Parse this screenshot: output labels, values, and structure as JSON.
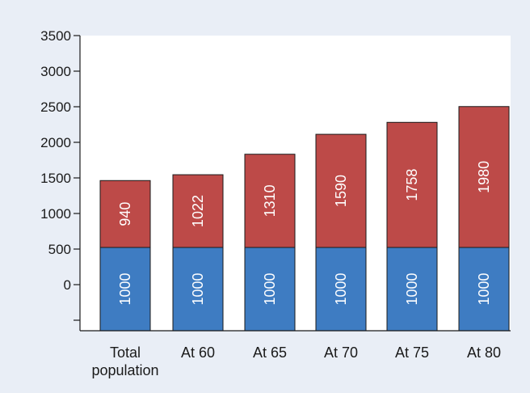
{
  "chart_data": {
    "type": "bar",
    "stacked": true,
    "categories": [
      [
        "Total",
        "population"
      ],
      [
        "At 60"
      ],
      [
        "At 65"
      ],
      [
        "At 70"
      ],
      [
        "At 75"
      ],
      [
        "At 80"
      ]
    ],
    "series": [
      {
        "values": [
          1000,
          1000,
          1000,
          1000,
          1000,
          1000
        ],
        "color": "#3e7cc2"
      },
      {
        "values": [
          940,
          1022,
          1310,
          1590,
          1758,
          1980
        ],
        "color": "#bd4a48"
      }
    ],
    "y_ticks": [
      "3500",
      "3000",
      "2500",
      "2000",
      "1500",
      "1000",
      "500",
      "0",
      ""
    ],
    "ylim": [
      -500,
      3500
    ],
    "grid": false,
    "legend": "none",
    "background_color": "#e9eef6",
    "plot_background_color": "#ffffff"
  }
}
